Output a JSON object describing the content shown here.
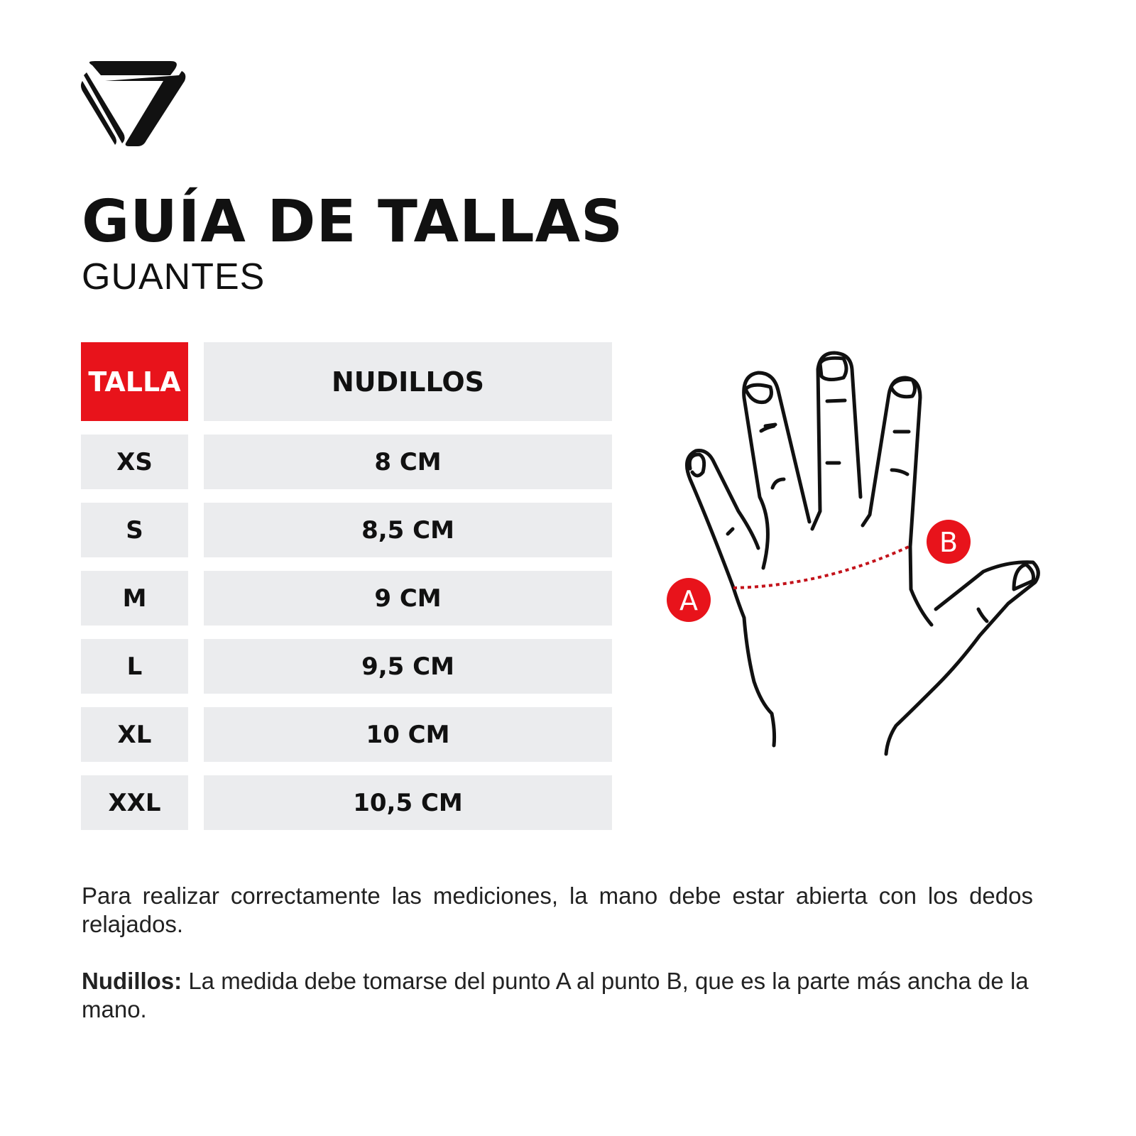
{
  "brand": {
    "logo": "triangle-emblem-logo"
  },
  "header": {
    "title": "GUÍA DE TALLAS",
    "subtitle": "GUANTES"
  },
  "table": {
    "headers": [
      "TALLA",
      "NUDILLOS"
    ],
    "rows": [
      {
        "size": "XS",
        "knuckles": "8 CM"
      },
      {
        "size": "S",
        "knuckles": "8,5 CM"
      },
      {
        "size": "M",
        "knuckles": "9 CM"
      },
      {
        "size": "L",
        "knuckles": "9,5 CM"
      },
      {
        "size": "XL",
        "knuckles": "10 CM"
      },
      {
        "size": "XXL",
        "knuckles": "10,5 CM"
      }
    ]
  },
  "illustration": {
    "point_a": "A",
    "point_b": "B"
  },
  "instructions": {
    "p1": "Para realizar correctamente las mediciones, la mano debe estar abierta con los dedos relajados.",
    "p2_label": "Nudillos:",
    "p2_text": " La medida debe tomarse del punto A al punto B, que es la parte más ancha de la mano."
  },
  "colors": {
    "accent": "#e8131b",
    "cell_bg": "#ebecee",
    "text": "#111111"
  }
}
